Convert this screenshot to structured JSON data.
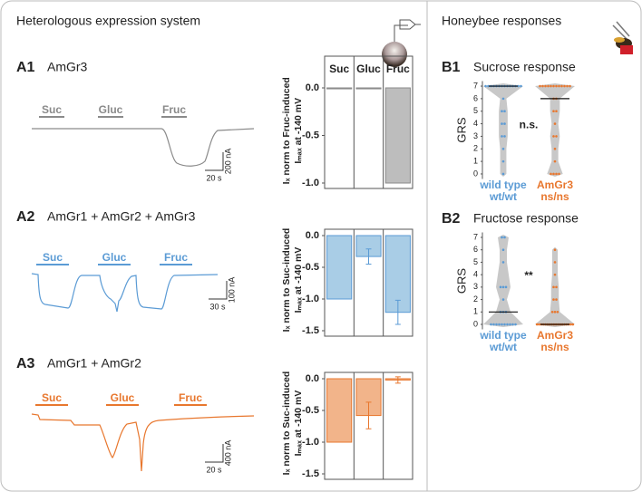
{
  "sections": [
    "Heterologous expression system",
    "Honeybee responses"
  ],
  "traces": [
    {
      "labels": [
        "Suc",
        "Gluc",
        "Fruc"
      ],
      "scale_y": "200 nA",
      "scale_x": "20 s"
    },
    {
      "labels": [
        "Suc",
        "Gluc",
        "Fruc"
      ],
      "scale_y": "100 nA",
      "scale_x": "30 s"
    },
    {
      "labels": [
        "Suc",
        "Gluc",
        "Fruc"
      ],
      "scale_y": "400 nA",
      "scale_x": "20 s"
    }
  ],
  "chart_data": [
    {
      "type": "bar",
      "panel": "A1",
      "title": "AmGr3",
      "ylabel": [
        "Iₓ norm to Fruc-induced",
        "Iₘₐₓ at -140 mV"
      ],
      "categories": [
        "Suc",
        "Gluc",
        "Fruc"
      ],
      "values": [
        -0.01,
        -0.01,
        -1.0
      ],
      "color": "#bdbdbd",
      "edge": "#8a8a8a",
      "ylim": [
        -1.0,
        0.1
      ],
      "yticks": [
        {
          "value": 0,
          "label": "0.0"
        },
        -0.5,
        {
          "value": -1,
          "label": "-1.0"
        }
      ]
    },
    {
      "type": "bar",
      "panel": "A2",
      "title": "AmGr1 + AmGr2 + AmGr3",
      "ylabel": [
        "Iₓ norm to Suc-induced",
        "Iₘₐₓ at -140 mV"
      ],
      "categories": [
        null,
        null,
        null
      ],
      "values": [
        -1.0,
        -0.33,
        -1.21
      ],
      "errors": [
        0,
        0.12,
        0.19
      ],
      "color": "#a9cde6",
      "edge": "#5b9bd5",
      "ylim": [
        -1.5,
        0.1
      ],
      "yticks": [
        {
          "value": 0,
          "label": "0.0"
        },
        -0.5,
        {
          "value": -1,
          "label": "-1.0"
        },
        -1.5
      ]
    },
    {
      "type": "bar",
      "panel": "A3",
      "title": "AmGr1 + AmGr2",
      "ylabel": [
        "Iₓ norm to Suc-induced",
        "Iₘₐₓ at -140 mV"
      ],
      "categories": [
        null,
        null,
        null
      ],
      "values": [
        -1.0,
        -0.58,
        -0.02
      ],
      "errors": [
        0,
        0.21,
        0.05
      ],
      "color": "#f2b48a",
      "edge": "#e8772e",
      "ylim": [
        -1.5,
        0.1
      ],
      "yticks": [
        {
          "value": 0,
          "label": "0.0"
        },
        -0.5,
        {
          "value": -1,
          "label": "-1.0"
        },
        -1.5
      ]
    },
    {
      "type": "violin",
      "panel": "B1",
      "title": "Sucrose response",
      "ylabel": "GRS",
      "annotation": "n.s.",
      "ylim": [
        -0.4,
        7.4
      ],
      "yticks": [
        0,
        1,
        2,
        3,
        4,
        5,
        6,
        7
      ],
      "series": [
        {
          "name": "wild type",
          "genotype": "wt/wt",
          "color": "#5b9bd5",
          "median": 7,
          "values": [
            7,
            7,
            7,
            7,
            7,
            7,
            7,
            7,
            7,
            7,
            7,
            7,
            7,
            7,
            6,
            5,
            5,
            4,
            4,
            3,
            3,
            2,
            1,
            0
          ]
        },
        {
          "name": "AmGr3",
          "genotype": "ns/ns",
          "color": "#e8772e",
          "median": 6,
          "values": [
            7,
            7,
            7,
            7,
            7,
            7,
            7,
            7,
            7,
            7,
            7,
            7,
            6,
            6,
            5,
            5,
            4,
            3,
            3,
            2,
            1,
            0,
            0,
            0,
            0
          ]
        }
      ]
    },
    {
      "type": "violin",
      "panel": "B2",
      "title": "Fructose response",
      "ylabel": "GRS",
      "annotation": "**",
      "ylim": [
        -0.4,
        7.4
      ],
      "yticks": [
        0,
        1,
        2,
        3,
        4,
        5,
        6,
        7
      ],
      "series": [
        {
          "name": "wild type",
          "genotype": "wt/wt",
          "color": "#5b9bd5",
          "median": 1,
          "values": [
            7,
            7,
            6,
            5,
            3,
            3,
            3,
            2,
            1,
            1,
            1,
            0,
            0,
            0,
            0,
            0,
            0,
            0,
            0,
            0,
            0
          ]
        },
        {
          "name": "AmGr3",
          "genotype": "ns/ns",
          "color": "#e8772e",
          "median": 0,
          "values": [
            6,
            5,
            4,
            3,
            3,
            2,
            2,
            1,
            1,
            1,
            0,
            0,
            0,
            0,
            0,
            0,
            0,
            0,
            0,
            0,
            0,
            0,
            0,
            0,
            0,
            0,
            0,
            0
          ]
        }
      ]
    }
  ]
}
